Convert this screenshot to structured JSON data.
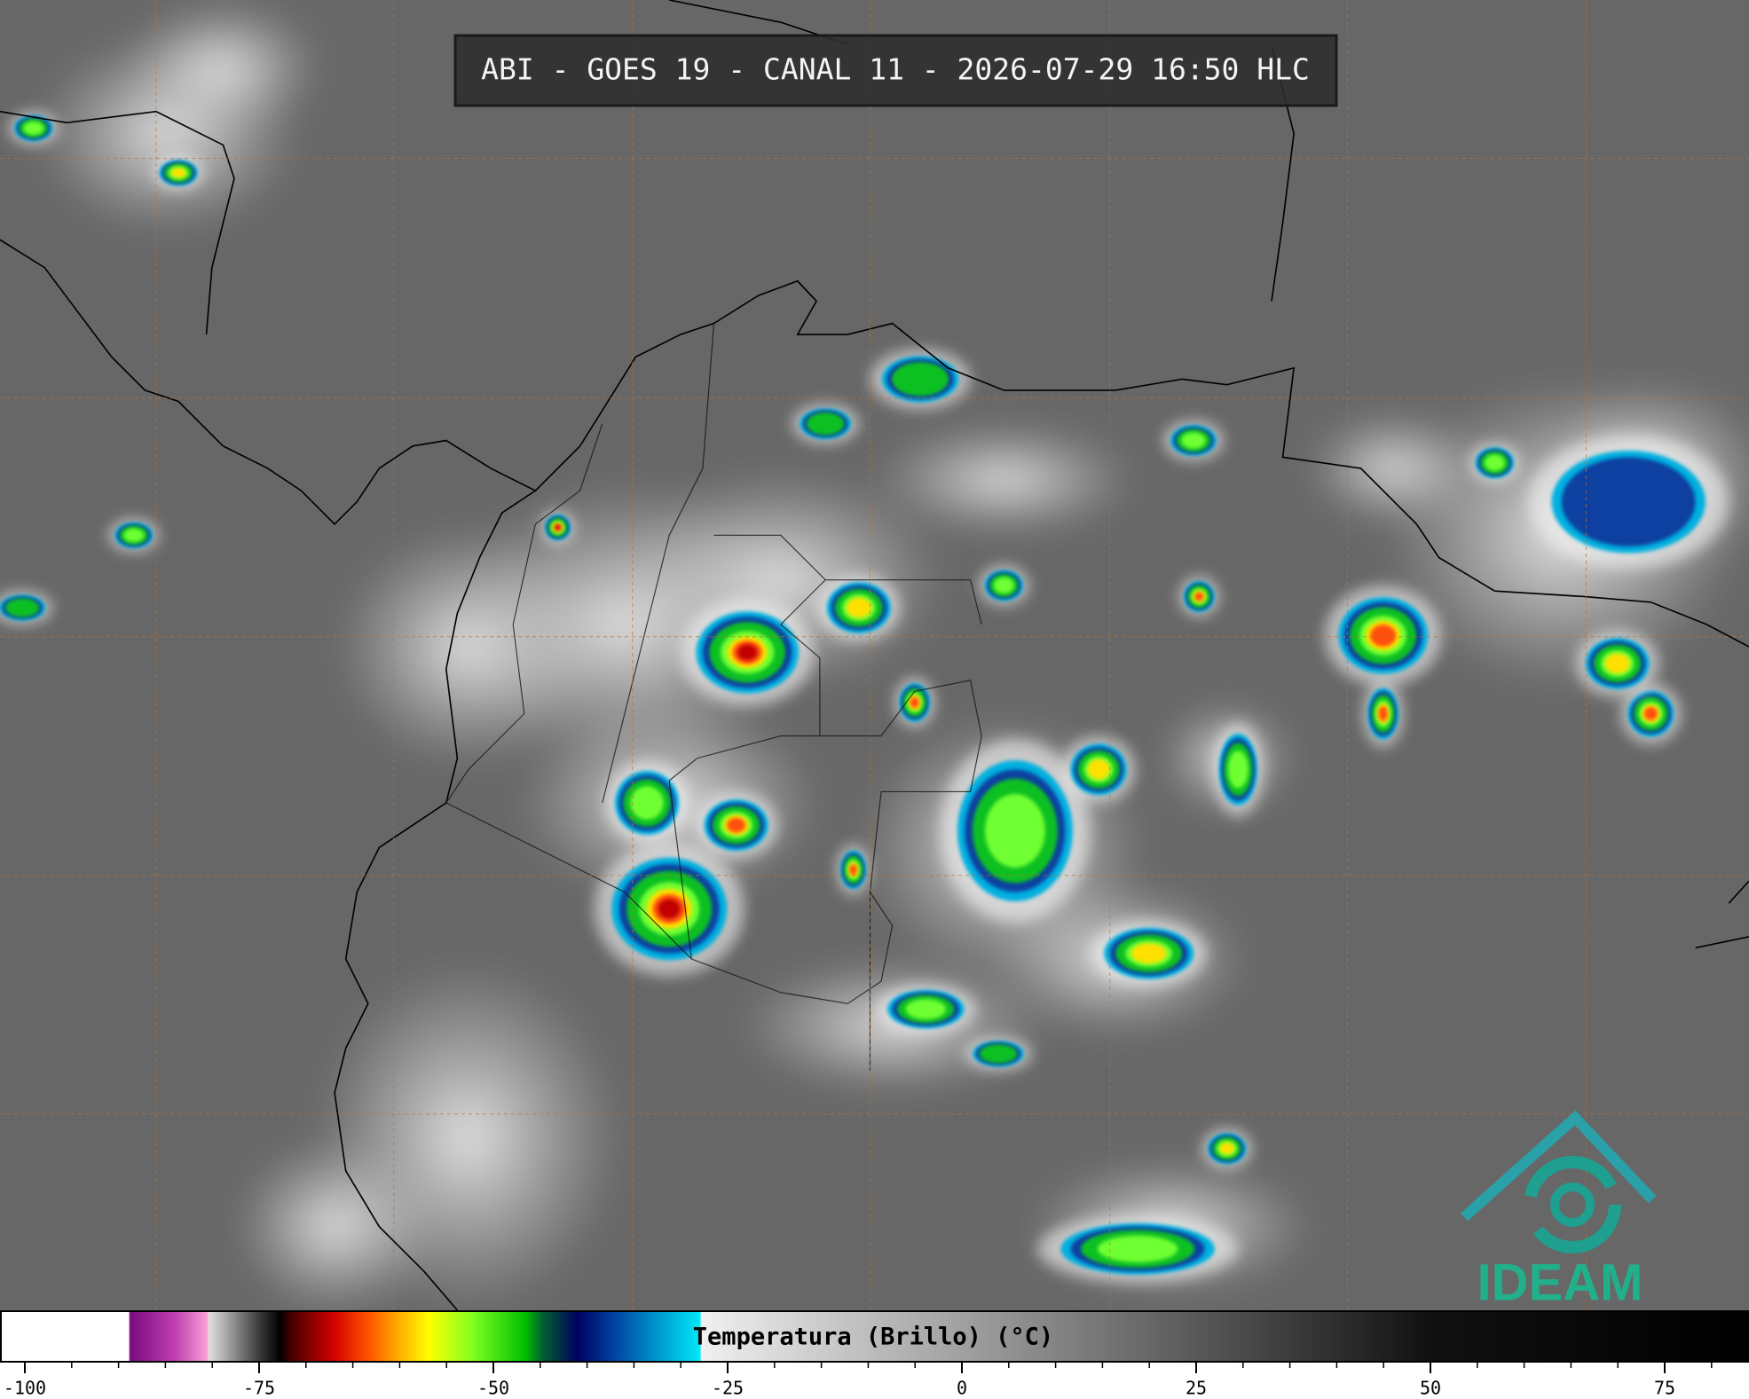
{
  "header": {
    "title": "ABI - GOES 19 - CANAL 11 - 2026-07-29 16:50 HLC"
  },
  "colorbar": {
    "label": "Temperatura (Brillo) (°C)",
    "ticks": [
      -100,
      -75,
      -50,
      -25,
      0,
      25,
      50,
      75
    ]
  },
  "logo": {
    "text": "IDEAM"
  }
}
